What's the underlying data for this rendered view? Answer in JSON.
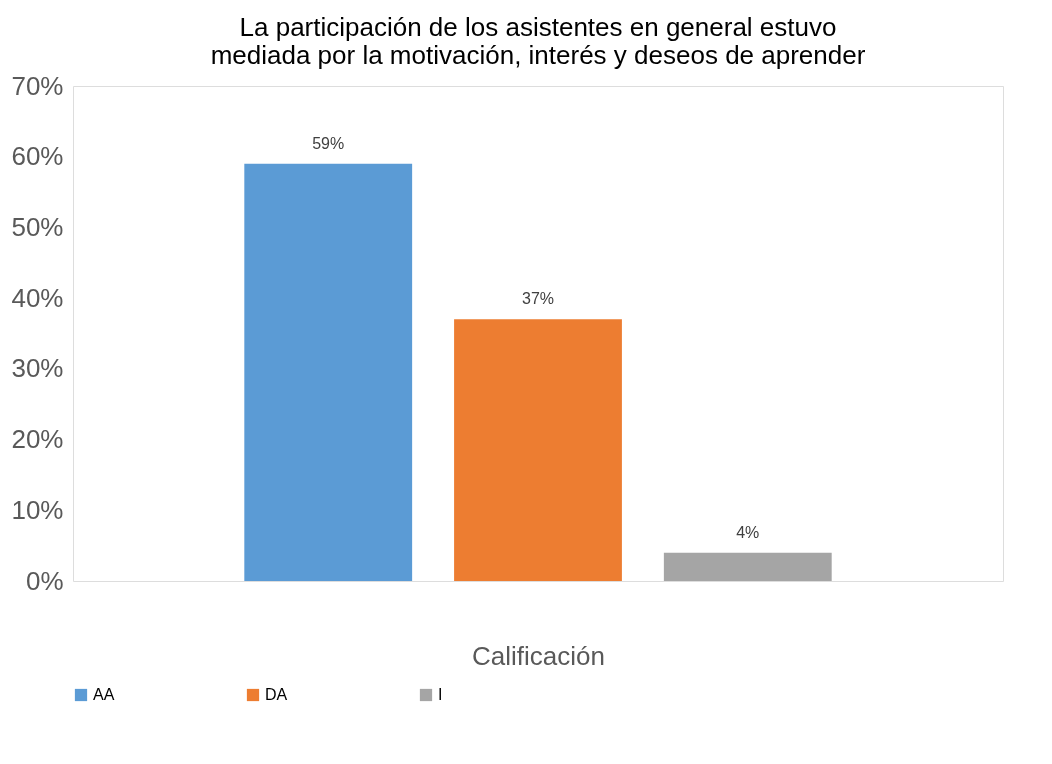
{
  "chart_data": {
    "type": "bar",
    "title": [
      "La participación de los asistentes en general estuvo",
      "mediada por la motivación, interés y deseos de aprender"
    ],
    "xlabel": "Calificación",
    "categories": [
      null
    ],
    "series": [
      {
        "name": "AA",
        "color": "#5b9bd5",
        "values": [
          59
        ],
        "value_labels": [
          "59%"
        ]
      },
      {
        "name": "DA",
        "color": "#ed7d31",
        "values": [
          37
        ],
        "value_labels": [
          "37%"
        ]
      },
      {
        "name": "I",
        "color": "#a5a5a5",
        "values": [
          4
        ],
        "value_labels": [
          "4%"
        ]
      }
    ],
    "ylim": [
      0,
      70
    ],
    "yticks": [
      {
        "value": 0,
        "label": "0%"
      },
      {
        "value": 10,
        "label": "10%"
      },
      {
        "value": 20,
        "label": "20%"
      },
      {
        "value": 30,
        "label": "30%"
      },
      {
        "value": 40,
        "label": "40%"
      },
      {
        "value": 50,
        "label": "50%"
      },
      {
        "value": 60,
        "label": "60%"
      },
      {
        "value": 70,
        "label": "70%"
      }
    ],
    "grid": false,
    "legend": "bottom"
  }
}
